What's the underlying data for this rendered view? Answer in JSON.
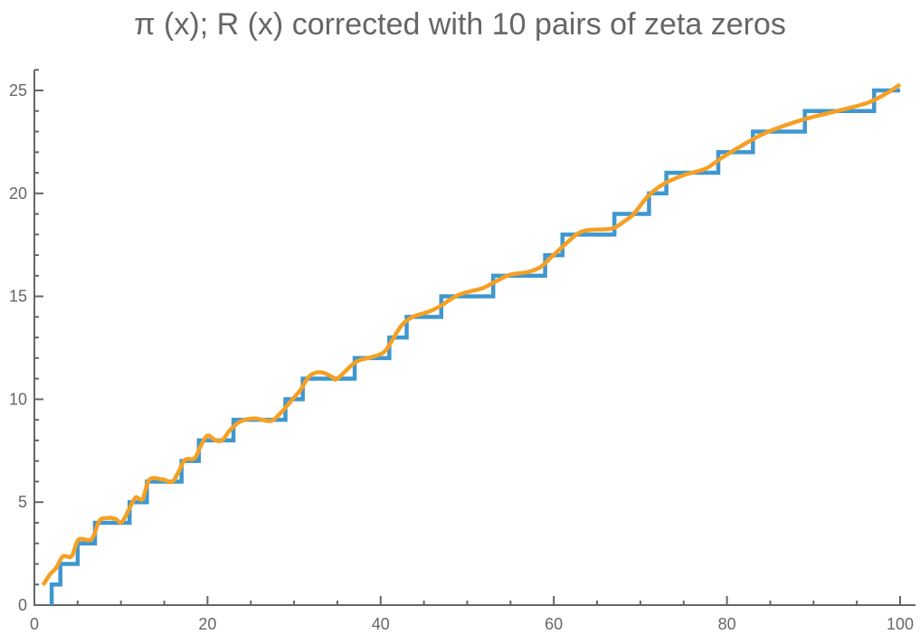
{
  "chart_data": {
    "type": "line",
    "title": "π (x); R (x) corrected with 10 pairs of zeta zeros",
    "xlabel": "",
    "ylabel": "",
    "xlim": [
      0,
      100
    ],
    "ylim": [
      0,
      26
    ],
    "x_ticks": [
      0,
      20,
      40,
      60,
      80,
      100
    ],
    "y_ticks": [
      0,
      5,
      10,
      15,
      20,
      25
    ],
    "grid": false,
    "colors": {
      "step": "#3f97cf",
      "curve": "#f4a024",
      "axis": "#666666"
    },
    "series": [
      {
        "kind": "step",
        "steps_at": [
          2,
          3,
          5,
          7,
          11,
          13,
          17,
          19,
          23,
          29,
          31,
          37,
          41,
          43,
          47,
          53,
          59,
          61,
          67,
          71,
          73,
          79,
          83,
          89,
          97
        ],
        "x_end": 100
      },
      {
        "kind": "smooth",
        "points": [
          [
            1.0,
            0.97
          ],
          [
            1.8,
            1.49
          ],
          [
            2.5,
            1.8
          ],
          [
            3.3,
            2.37
          ],
          [
            4.3,
            2.37
          ],
          [
            5.1,
            3.18
          ],
          [
            6.6,
            3.2
          ],
          [
            7.5,
            4.09
          ],
          [
            8.4,
            4.23
          ],
          [
            9.3,
            4.2
          ],
          [
            10.1,
            4.04
          ],
          [
            11.0,
            4.71
          ],
          [
            11.7,
            5.23
          ],
          [
            12.5,
            5.15
          ],
          [
            13.3,
            6.1
          ],
          [
            14.8,
            6.1
          ],
          [
            15.9,
            5.99
          ],
          [
            16.6,
            6.43
          ],
          [
            17.4,
            7.06
          ],
          [
            18.5,
            7.13
          ],
          [
            19.2,
            7.72
          ],
          [
            20.0,
            8.23
          ],
          [
            20.9,
            8.01
          ],
          [
            21.7,
            8.01
          ],
          [
            22.5,
            8.45
          ],
          [
            23.5,
            8.85
          ],
          [
            24.6,
            9.03
          ],
          [
            25.6,
            9.06
          ],
          [
            26.9,
            8.95
          ],
          [
            27.6,
            9.0
          ],
          [
            28.6,
            9.4
          ],
          [
            29.8,
            9.99
          ],
          [
            30.7,
            10.43
          ],
          [
            31.7,
            11.09
          ],
          [
            32.6,
            11.3
          ],
          [
            33.5,
            11.27
          ],
          [
            34.5,
            11.06
          ],
          [
            35.0,
            11.0
          ],
          [
            37.1,
            11.8
          ],
          [
            38.9,
            12.04
          ],
          [
            40.3,
            12.26
          ],
          [
            41.1,
            12.7
          ],
          [
            42.4,
            13.58
          ],
          [
            43.7,
            14.0
          ],
          [
            45.5,
            14.24
          ],
          [
            46.9,
            14.53
          ],
          [
            49.0,
            15.07
          ],
          [
            51.8,
            15.4
          ],
          [
            53.2,
            15.7
          ],
          [
            54.9,
            16.04
          ],
          [
            57.0,
            16.18
          ],
          [
            58.5,
            16.43
          ],
          [
            59.8,
            16.94
          ],
          [
            61.5,
            17.6
          ],
          [
            62.9,
            18.08
          ],
          [
            64.3,
            18.23
          ],
          [
            66.7,
            18.29
          ],
          [
            68.1,
            18.63
          ],
          [
            69.2,
            18.99
          ],
          [
            70.9,
            19.87
          ],
          [
            72.7,
            20.46
          ],
          [
            75.1,
            20.9
          ],
          [
            77.5,
            21.19
          ],
          [
            79.3,
            21.7
          ],
          [
            81.0,
            22.14
          ],
          [
            83.1,
            22.65
          ],
          [
            85.2,
            23.07
          ],
          [
            89.0,
            23.61
          ],
          [
            93.2,
            24.05
          ],
          [
            96.3,
            24.41
          ],
          [
            98.4,
            24.85
          ],
          [
            100.0,
            25.29
          ]
        ]
      }
    ]
  }
}
